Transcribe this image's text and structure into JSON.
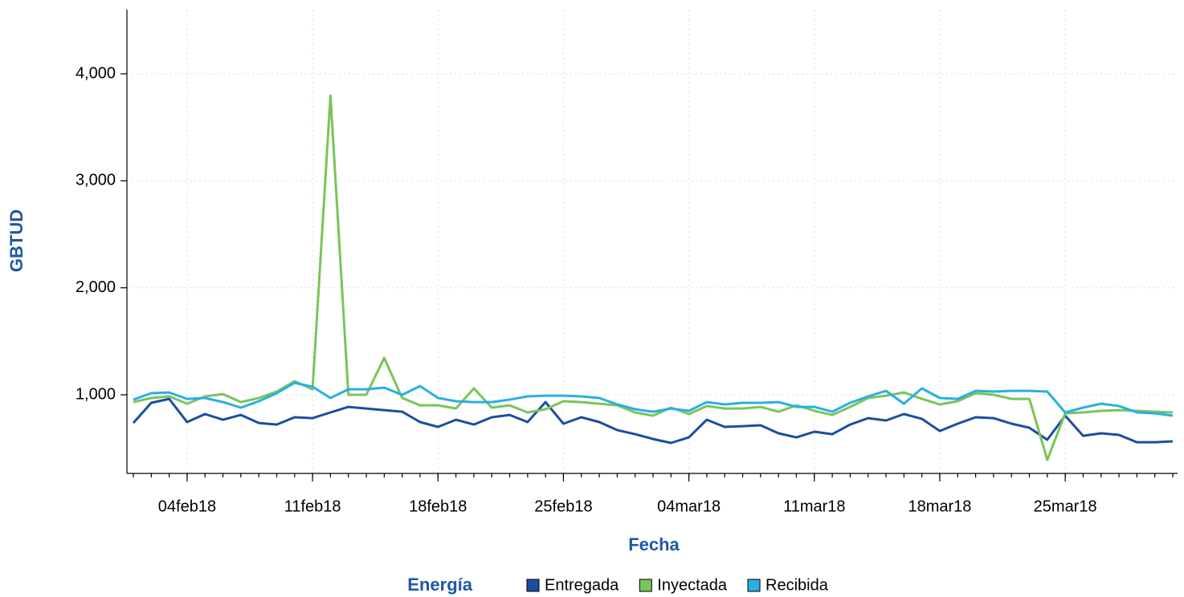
{
  "chart_data": {
    "type": "line",
    "ylabel": "GBTUD",
    "xlabel": "Fecha",
    "legend_title": "Energía",
    "grid": true,
    "x": [
      "2018-02-01",
      "2018-02-02",
      "2018-02-03",
      "2018-02-04",
      "2018-02-05",
      "2018-02-06",
      "2018-02-07",
      "2018-02-08",
      "2018-02-09",
      "2018-02-10",
      "2018-02-11",
      "2018-02-12",
      "2018-02-13",
      "2018-02-14",
      "2018-02-15",
      "2018-02-16",
      "2018-02-17",
      "2018-02-18",
      "2018-02-19",
      "2018-02-20",
      "2018-02-21",
      "2018-02-22",
      "2018-02-23",
      "2018-02-24",
      "2018-02-25",
      "2018-02-26",
      "2018-02-27",
      "2018-02-28",
      "2018-03-01",
      "2018-03-02",
      "2018-03-03",
      "2018-03-04",
      "2018-03-05",
      "2018-03-06",
      "2018-03-07",
      "2018-03-08",
      "2018-03-09",
      "2018-03-10",
      "2018-03-11",
      "2018-03-12",
      "2018-03-13",
      "2018-03-14",
      "2018-03-15",
      "2018-03-16",
      "2018-03-17",
      "2018-03-18",
      "2018-03-19",
      "2018-03-20",
      "2018-03-21",
      "2018-03-22",
      "2018-03-23",
      "2018-03-24",
      "2018-03-25",
      "2018-03-26",
      "2018-03-27",
      "2018-03-28",
      "2018-03-29",
      "2018-03-30",
      "2018-03-31"
    ],
    "xlim": [
      "2018-02-01",
      "2018-03-31"
    ],
    "xticks": [
      {
        "value": "2018-02-04",
        "label": "04feb18"
      },
      {
        "value": "2018-02-11",
        "label": "11feb18"
      },
      {
        "value": "2018-02-18",
        "label": "18feb18"
      },
      {
        "value": "2018-02-25",
        "label": "25feb18"
      },
      {
        "value": "2018-03-04",
        "label": "04mar18"
      },
      {
        "value": "2018-03-11",
        "label": "11mar18"
      },
      {
        "value": "2018-03-18",
        "label": "18mar18"
      },
      {
        "value": "2018-03-25",
        "label": "25mar18"
      }
    ],
    "ylim": [
      265,
      4600
    ],
    "yticks": [
      {
        "value": 1000,
        "label": "1,000"
      },
      {
        "value": 2000,
        "label": "2,000"
      },
      {
        "value": 3000,
        "label": "3,000"
      },
      {
        "value": 4000,
        "label": "4,000"
      }
    ],
    "series": [
      {
        "name": "Entregada",
        "color": "#1a4fa0",
        "values": [
          737,
          925,
          962,
          745,
          820,
          767,
          812,
          737,
          722,
          790,
          782,
          835,
          887,
          872,
          857,
          842,
          745,
          700,
          767,
          722,
          790,
          812,
          745,
          932,
          730,
          790,
          745,
          670,
          632,
          587,
          550,
          602,
          767,
          700,
          707,
          715,
          640,
          602,
          655,
          632,
          722,
          782,
          760,
          820,
          775,
          662,
          730,
          790,
          782,
          730,
          692,
          580,
          805,
          617,
          640,
          625,
          557,
          557,
          565
        ]
      },
      {
        "name": "Inyectada",
        "color": "#7ac45a",
        "values": [
          932,
          970,
          985,
          917,
          985,
          1007,
          932,
          970,
          1030,
          1127,
          1052,
          3797,
          1000,
          1000,
          1345,
          970,
          902,
          902,
          872,
          1060,
          880,
          902,
          835,
          865,
          940,
          932,
          917,
          902,
          835,
          805,
          880,
          820,
          895,
          872,
          872,
          887,
          842,
          902,
          850,
          812,
          887,
          970,
          992,
          1022,
          962,
          910,
          940,
          1015,
          1000,
          962,
          962,
          392,
          827,
          835,
          850,
          857,
          850,
          842,
          835
        ]
      },
      {
        "name": "Recibida",
        "color": "#29b0e0",
        "values": [
          955,
          1015,
          1022,
          962,
          970,
          932,
          880,
          940,
          1015,
          1112,
          1075,
          970,
          1052,
          1052,
          1067,
          1000,
          1082,
          970,
          940,
          932,
          932,
          955,
          985,
          992,
          992,
          985,
          970,
          910,
          865,
          842,
          872,
          850,
          932,
          910,
          925,
          925,
          932,
          887,
          887,
          842,
          925,
          985,
          1037,
          917,
          1060,
          970,
          962,
          1037,
          1030,
          1037,
          1037,
          1030,
          835,
          880,
          917,
          895,
          835,
          827,
          805
        ]
      }
    ]
  }
}
